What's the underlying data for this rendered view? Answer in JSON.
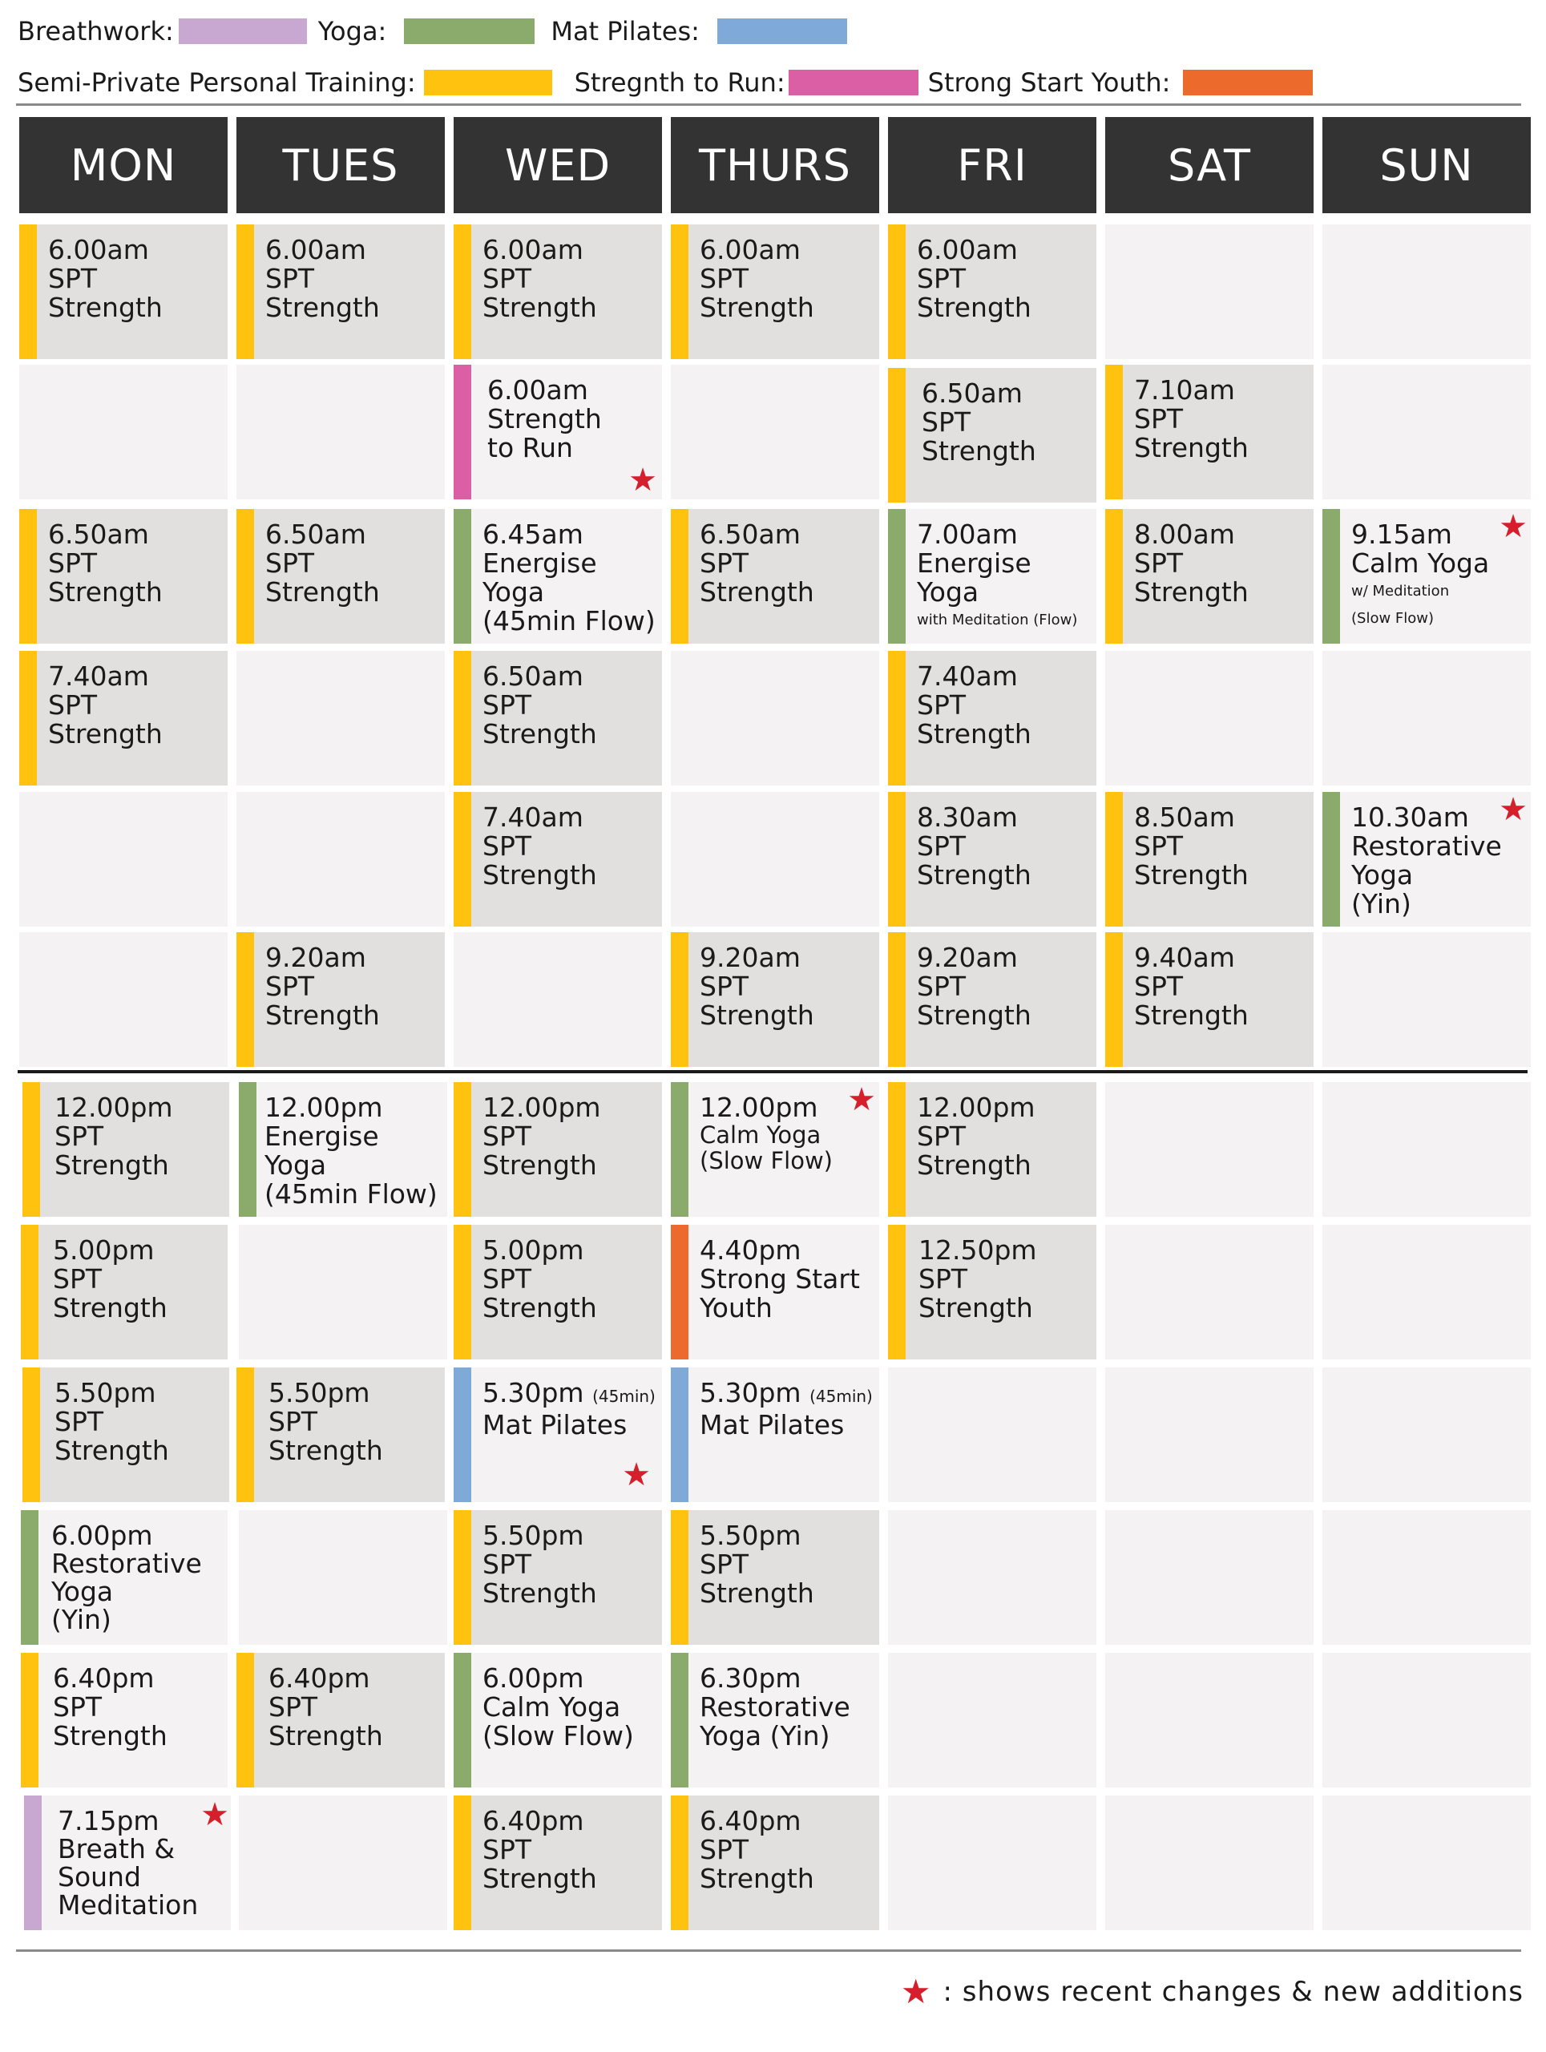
{
  "legend": {
    "row1": [
      {
        "label": "Breathwork:",
        "color": "#c8a8d0"
      },
      {
        "label": "Yoga:",
        "color": "#8aab6c"
      },
      {
        "label": "Mat Pilates:",
        "color": "#7fa9d8"
      }
    ],
    "row2": [
      {
        "label": "Semi-Private Personal Training:",
        "color": "#ffc20e"
      },
      {
        "label": "Stregnth to Run:",
        "color": "#db5fa5"
      },
      {
        "label": "Strong Start Youth:",
        "color": "#ec6a2c"
      }
    ]
  },
  "days": [
    "MON",
    "TUES",
    "WED",
    "THURS",
    "FRI",
    "SAT",
    "SUN"
  ],
  "colors": {
    "spt": "#ffc20e",
    "yoga": "#8aab6c",
    "breath": "#c8a8d0",
    "pilates": "#7fa9d8",
    "run": "#db5fa5",
    "youth": "#ec6a2c",
    "star": "#d61f2c",
    "header_bg": "#333333"
  },
  "classes": {
    "mon": {
      "c1": {
        "time": "6.00am",
        "name": "SPT\nStrength"
      },
      "c3": {
        "time": "6.50am",
        "name": "SPT\nStrength"
      },
      "c4": {
        "time": "7.40am",
        "name": "SPT\nStrength"
      },
      "p1": {
        "time": "12.00pm",
        "name": "SPT\nStrength"
      },
      "p2": {
        "time": "5.00pm",
        "name": "SPT\nStrength"
      },
      "p3": {
        "time": "5.50pm",
        "name": "SPT\nStrength"
      },
      "p4": {
        "time": "6.00pm",
        "name": "Restorative\nYoga\n(Yin)"
      },
      "p5": {
        "time": "6.40pm",
        "name": "SPT\nStrength"
      },
      "p6": {
        "time": "7.15pm",
        "name": "Breath &\nSound\nMeditation"
      }
    },
    "tues": {
      "c1": {
        "time": "6.00am",
        "name": "SPT\nStrength"
      },
      "c3": {
        "time": "6.50am",
        "name": "SPT\nStrength"
      },
      "c6": {
        "time": "9.20am",
        "name": "SPT\nStrength"
      },
      "p1": {
        "time": "12.00pm",
        "name": "Energise Yoga\n(45min Flow)"
      },
      "p3": {
        "time": "5.50pm",
        "name": "SPT\nStrength"
      },
      "p5": {
        "time": "6.40pm",
        "name": "SPT\nStrength"
      }
    },
    "wed": {
      "c1": {
        "time": "6.00am",
        "name": "SPT\nStrength"
      },
      "c2": {
        "time": "6.00am",
        "name": "Strength\nto Run"
      },
      "c3": {
        "time": "6.45am",
        "name": "Energise Yoga\n(45min Flow)"
      },
      "c4": {
        "time": "6.50am",
        "name": "SPT\nStrength"
      },
      "c5": {
        "time": "7.40am",
        "name": "SPT\nStrength"
      },
      "p1": {
        "time": "12.00pm",
        "name": "SPT\nStrength"
      },
      "p2": {
        "time": "5.00pm",
        "name": "SPT\nStrength"
      },
      "p3": {
        "time": "5.30pm",
        "dur": "(45min)",
        "name": "Mat Pilates"
      },
      "p4": {
        "time": "5.50pm",
        "name": "SPT\nStrength"
      },
      "p5": {
        "time": "6.00pm",
        "name": "Calm Yoga\n(Slow Flow)"
      },
      "p6": {
        "time": "6.40pm",
        "name": "SPT\nStrength"
      }
    },
    "thurs": {
      "c1": {
        "time": "6.00am",
        "name": "SPT\nStrength"
      },
      "c3": {
        "time": "6.50am",
        "name": "SPT\nStrength"
      },
      "c6": {
        "time": "9.20am",
        "name": "SPT\nStrength"
      },
      "p1": {
        "time": "12.00pm",
        "name": "Calm Yoga\n(Slow Flow)"
      },
      "p2": {
        "time": "4.40pm",
        "name": "Strong Start\nYouth"
      },
      "p3": {
        "time": "5.30pm",
        "dur": "(45min)",
        "name": "Mat Pilates"
      },
      "p4": {
        "time": "5.50pm",
        "name": "SPT\nStrength"
      },
      "p5": {
        "time": "6.30pm",
        "name": "Restorative\nYoga (Yin)"
      },
      "p6": {
        "time": "6.40pm",
        "name": "SPT\nStrength"
      }
    },
    "fri": {
      "c1": {
        "time": "6.00am",
        "name": "SPT\nStrength"
      },
      "c2": {
        "time": "6.50am",
        "name": "SPT\nStrength"
      },
      "c3": {
        "time": "7.00am",
        "name": "Energise Yoga",
        "sub": "with Meditation (Flow)"
      },
      "c4": {
        "time": "7.40am",
        "name": "SPT\nStrength"
      },
      "c5": {
        "time": "8.30am",
        "name": "SPT\nStrength"
      },
      "c6": {
        "time": "9.20am",
        "name": "SPT\nStrength"
      },
      "p1": {
        "time": "12.00pm",
        "name": "SPT\nStrength"
      },
      "p2": {
        "time": "12.50pm",
        "name": "SPT\nStrength"
      }
    },
    "sat": {
      "c2": {
        "time": "7.10am",
        "name": "SPT\nStrength"
      },
      "c3": {
        "time": "8.00am",
        "name": "SPT\nStrength"
      },
      "c5": {
        "time": "8.50am",
        "name": "SPT\nStrength"
      },
      "c6": {
        "time": "9.40am",
        "name": "SPT\nStrength"
      }
    },
    "sun": {
      "c3": {
        "time": "9.15am",
        "name": "Calm Yoga",
        "sub": "w/ Meditation\n(Slow Flow)"
      },
      "c5": {
        "time": "10.30am",
        "name": "Restorative\nYoga\n(Yin)"
      }
    }
  },
  "footnote": {
    "text": ": shows recent changes & new additions"
  }
}
